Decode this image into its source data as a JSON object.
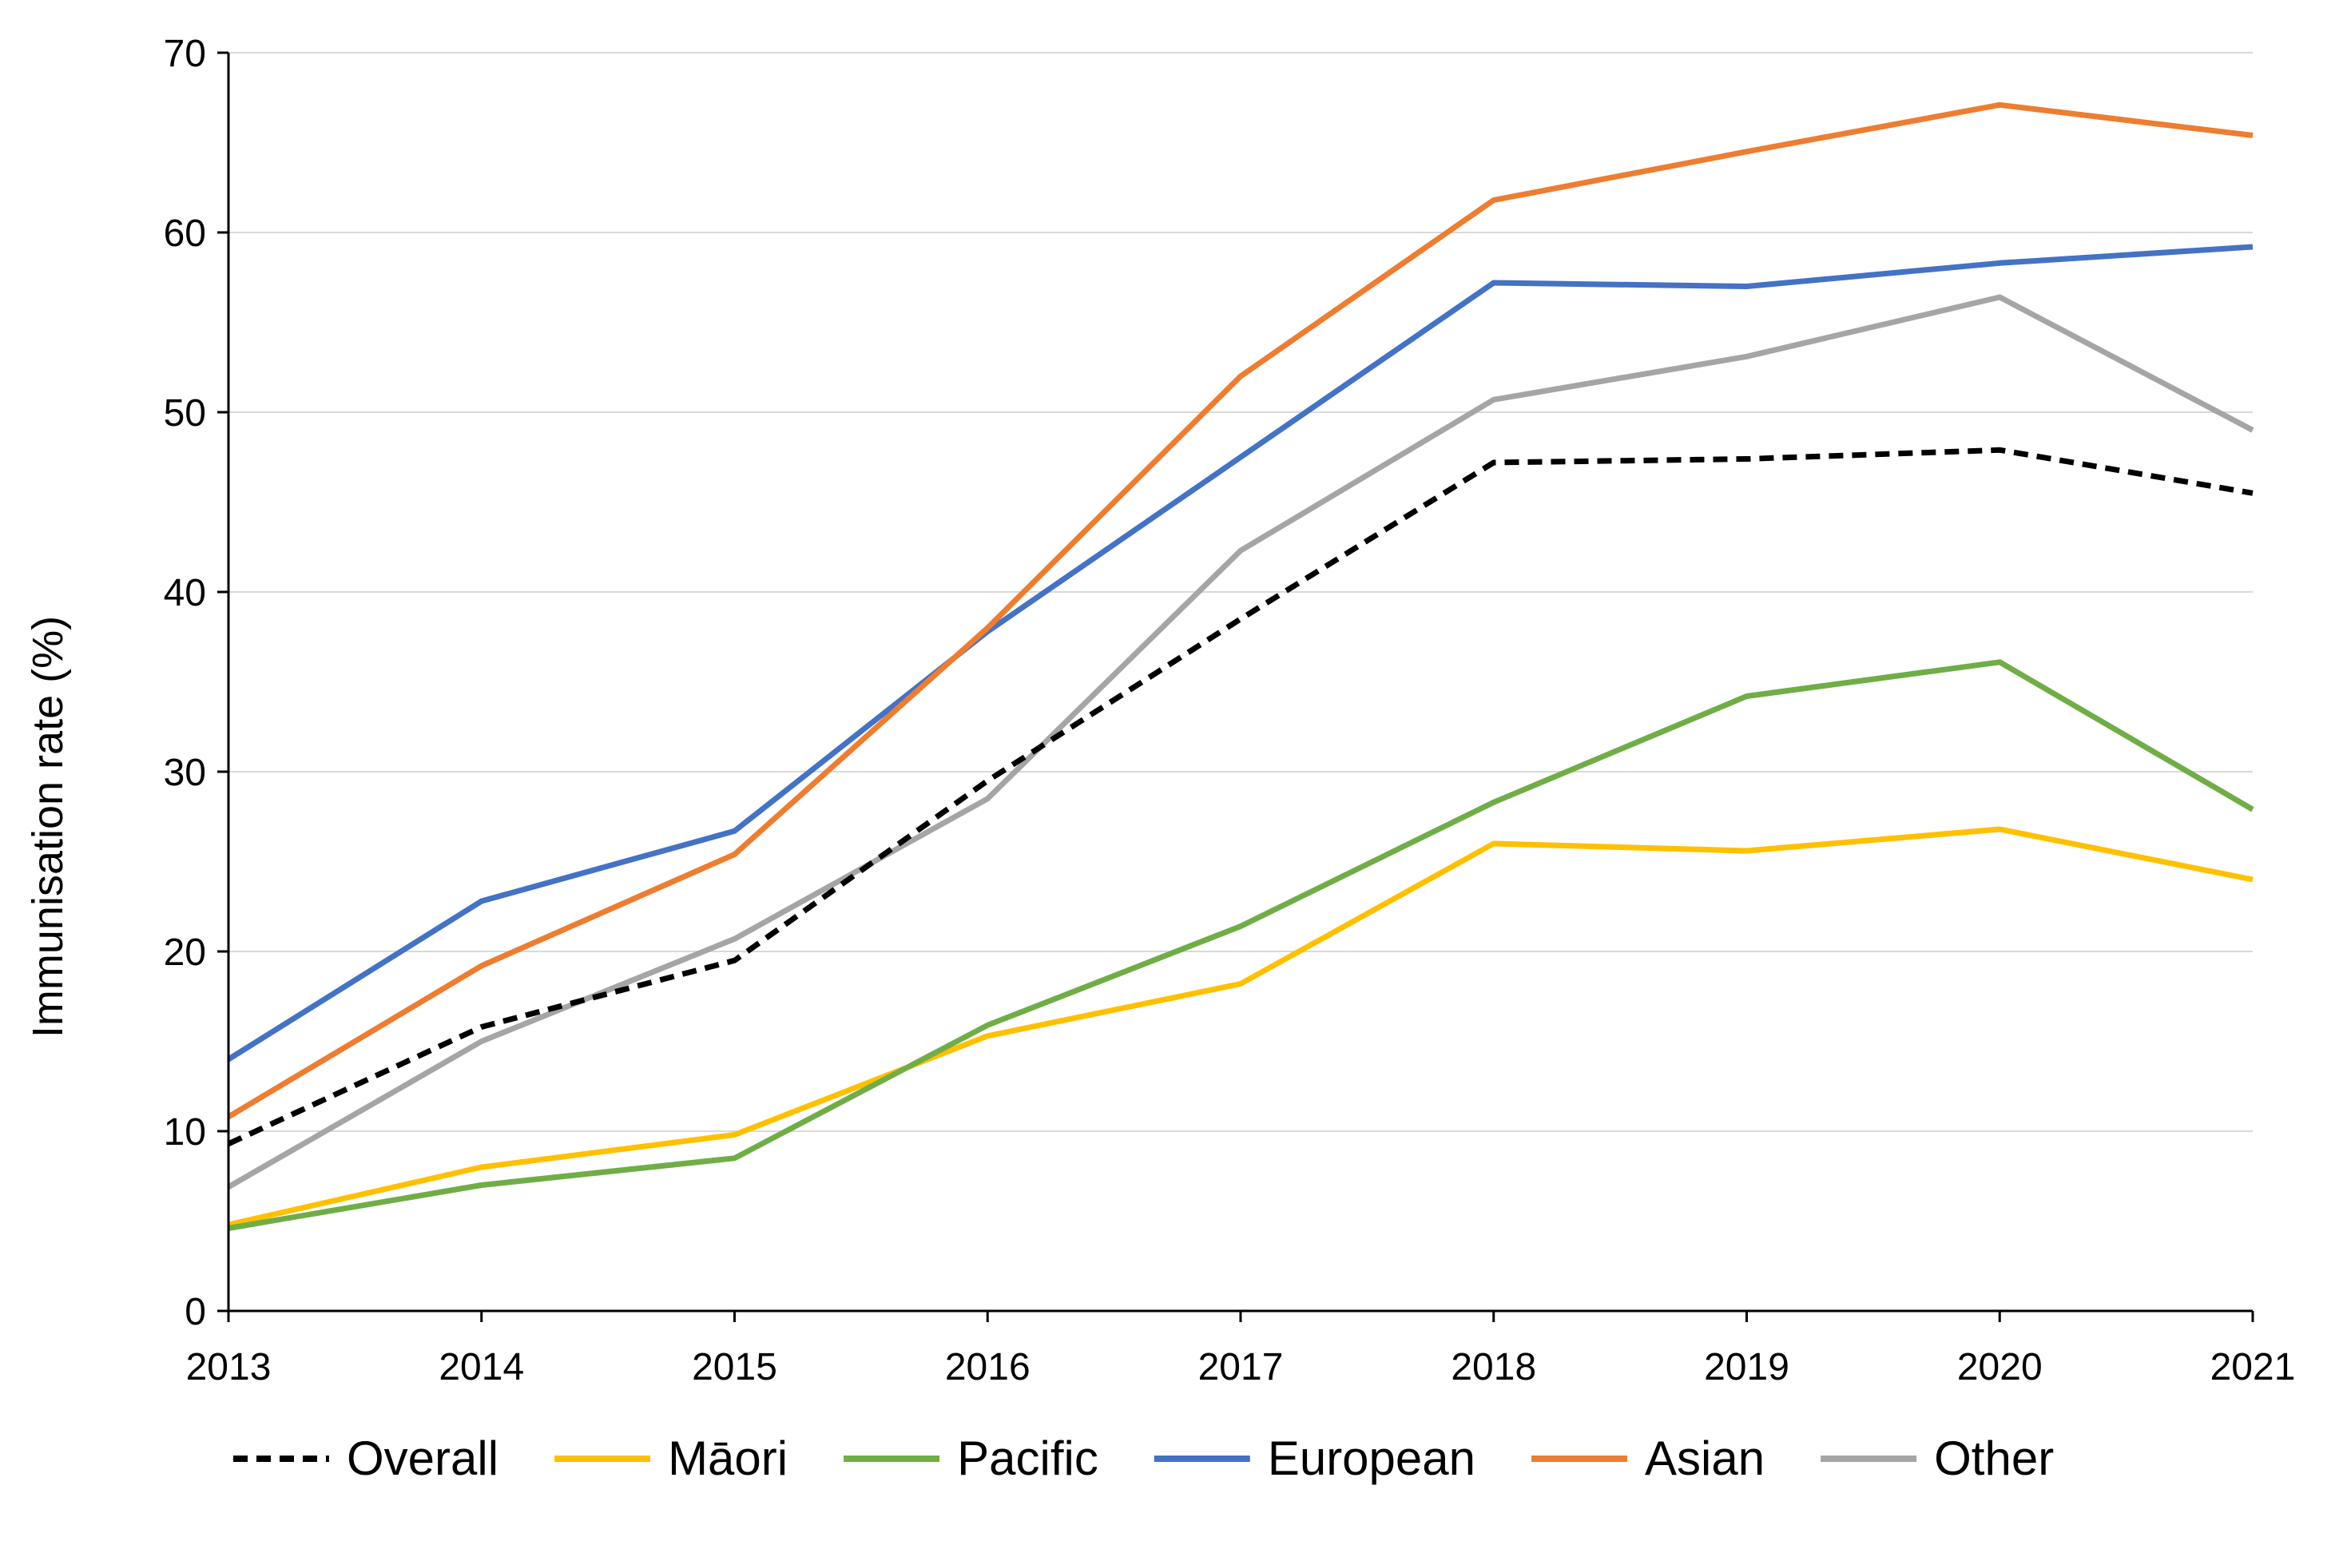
{
  "chart_data": {
    "type": "line",
    "title": "",
    "xlabel": "",
    "ylabel": "Immunisation rate (%)",
    "x": [
      "2013",
      "2014",
      "2015",
      "2016",
      "2017",
      "2018",
      "2019",
      "2020",
      "2021"
    ],
    "ylim": [
      0,
      70
    ],
    "yticks": [
      "0",
      "10",
      "20",
      "30",
      "40",
      "50",
      "60",
      "70"
    ],
    "grid": true,
    "legend_position": "bottom",
    "series": [
      {
        "name": "Overall",
        "color": "#000000",
        "dashed": true,
        "values": [
          9.3,
          15.8,
          19.5,
          29.5,
          38.5,
          47.2,
          47.4,
          47.9,
          45.5
        ]
      },
      {
        "name": "Māori",
        "color": "#FFC000",
        "dashed": false,
        "values": [
          4.8,
          8.0,
          9.8,
          15.3,
          18.2,
          26.0,
          25.6,
          26.8,
          24.0
        ]
      },
      {
        "name": "Pacific",
        "color": "#70AD47",
        "dashed": false,
        "values": [
          4.6,
          7.0,
          8.5,
          15.9,
          21.4,
          28.3,
          34.2,
          36.1,
          27.9
        ]
      },
      {
        "name": "European",
        "color": "#4472C4",
        "dashed": false,
        "values": [
          14.0,
          22.8,
          26.7,
          37.8,
          47.5,
          57.2,
          57.0,
          58.3,
          59.2
        ]
      },
      {
        "name": "Asian",
        "color": "#ED7D31",
        "dashed": false,
        "values": [
          10.8,
          19.2,
          25.4,
          38.0,
          52.0,
          61.8,
          64.5,
          67.1,
          65.4
        ]
      },
      {
        "name": "Other",
        "color": "#A5A5A5",
        "dashed": false,
        "values": [
          6.9,
          15.0,
          20.7,
          28.5,
          42.3,
          50.7,
          53.1,
          56.4,
          49.0
        ]
      }
    ]
  }
}
